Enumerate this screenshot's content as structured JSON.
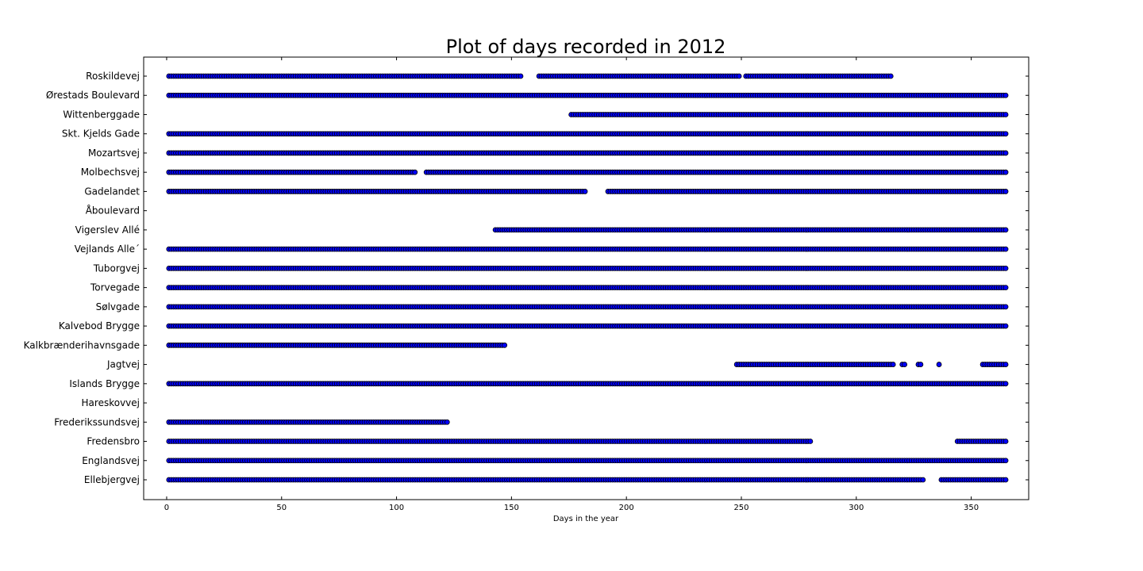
{
  "chart_data": {
    "type": "scatter",
    "title": "Plot of days recorded in 2012",
    "xlabel": "Days in the year",
    "ylabel": "",
    "xlim": [
      -10,
      375
    ],
    "xticks": [
      0,
      50,
      100,
      150,
      200,
      250,
      300,
      350
    ],
    "grid": false,
    "marker_color": "#0000ff",
    "marker_edge_color": "#000000",
    "categories": [
      "Ellebjergvej",
      "Englandsvej",
      "Fredensbro",
      "Frederikssundsvej",
      "Hareskovvej",
      "Islands Brygge",
      "Jagtvej",
      "Kalkbrænderihavnsgade",
      "Kalvebod Brygge",
      "Sølvgade",
      "Torvegade",
      "Tuborgvej",
      "Vejlands Alle´",
      "Vigerslev Allé",
      "Åboulevard",
      "Gadelandet",
      "Molbechsvej",
      "Mozartsvej",
      "Skt. Kjelds Gade",
      "Wittenberggade",
      "Ørestads Boulevard",
      "Roskildevej"
    ],
    "series": [
      {
        "category": "Ellebjergvej",
        "day_ranges": [
          [
            1,
            329
          ],
          [
            337,
            365
          ]
        ]
      },
      {
        "category": "Englandsvej",
        "day_ranges": [
          [
            1,
            365
          ]
        ]
      },
      {
        "category": "Fredensbro",
        "day_ranges": [
          [
            1,
            280
          ],
          [
            344,
            365
          ]
        ]
      },
      {
        "category": "Frederikssundsvej",
        "day_ranges": [
          [
            1,
            122
          ]
        ]
      },
      {
        "category": "Hareskovvej",
        "day_ranges": []
      },
      {
        "category": "Islands Brygge",
        "day_ranges": [
          [
            1,
            365
          ]
        ]
      },
      {
        "category": "Jagtvej",
        "day_ranges": [
          [
            248,
            316
          ],
          [
            320,
            321
          ],
          [
            327,
            328
          ],
          [
            336,
            336
          ],
          [
            355,
            365
          ]
        ]
      },
      {
        "category": "Kalkbrænderihavnsgade",
        "day_ranges": [
          [
            1,
            147
          ]
        ]
      },
      {
        "category": "Kalvebod Brygge",
        "day_ranges": [
          [
            1,
            365
          ]
        ]
      },
      {
        "category": "Sølvgade",
        "day_ranges": [
          [
            1,
            365
          ]
        ]
      },
      {
        "category": "Torvegade",
        "day_ranges": [
          [
            1,
            365
          ]
        ]
      },
      {
        "category": "Tuborgvej",
        "day_ranges": [
          [
            1,
            365
          ]
        ]
      },
      {
        "category": "Vejlands Alle´",
        "day_ranges": [
          [
            1,
            365
          ]
        ]
      },
      {
        "category": "Vigerslev Allé",
        "day_ranges": [
          [
            143,
            365
          ]
        ]
      },
      {
        "category": "Åboulevard",
        "day_ranges": []
      },
      {
        "category": "Gadelandet",
        "day_ranges": [
          [
            1,
            182
          ],
          [
            192,
            365
          ]
        ]
      },
      {
        "category": "Molbechsvej",
        "day_ranges": [
          [
            1,
            108
          ],
          [
            113,
            365
          ]
        ]
      },
      {
        "category": "Mozartsvej",
        "day_ranges": [
          [
            1,
            365
          ]
        ]
      },
      {
        "category": "Skt. Kjelds Gade",
        "day_ranges": [
          [
            1,
            365
          ]
        ]
      },
      {
        "category": "Wittenberggade",
        "day_ranges": [
          [
            176,
            365
          ]
        ]
      },
      {
        "category": "Ørestads Boulevard",
        "day_ranges": [
          [
            1,
            365
          ]
        ]
      },
      {
        "category": "Roskildevej",
        "day_ranges": [
          [
            1,
            154
          ],
          [
            162,
            171
          ],
          [
            172,
            249
          ],
          [
            252,
            315
          ]
        ]
      }
    ]
  }
}
